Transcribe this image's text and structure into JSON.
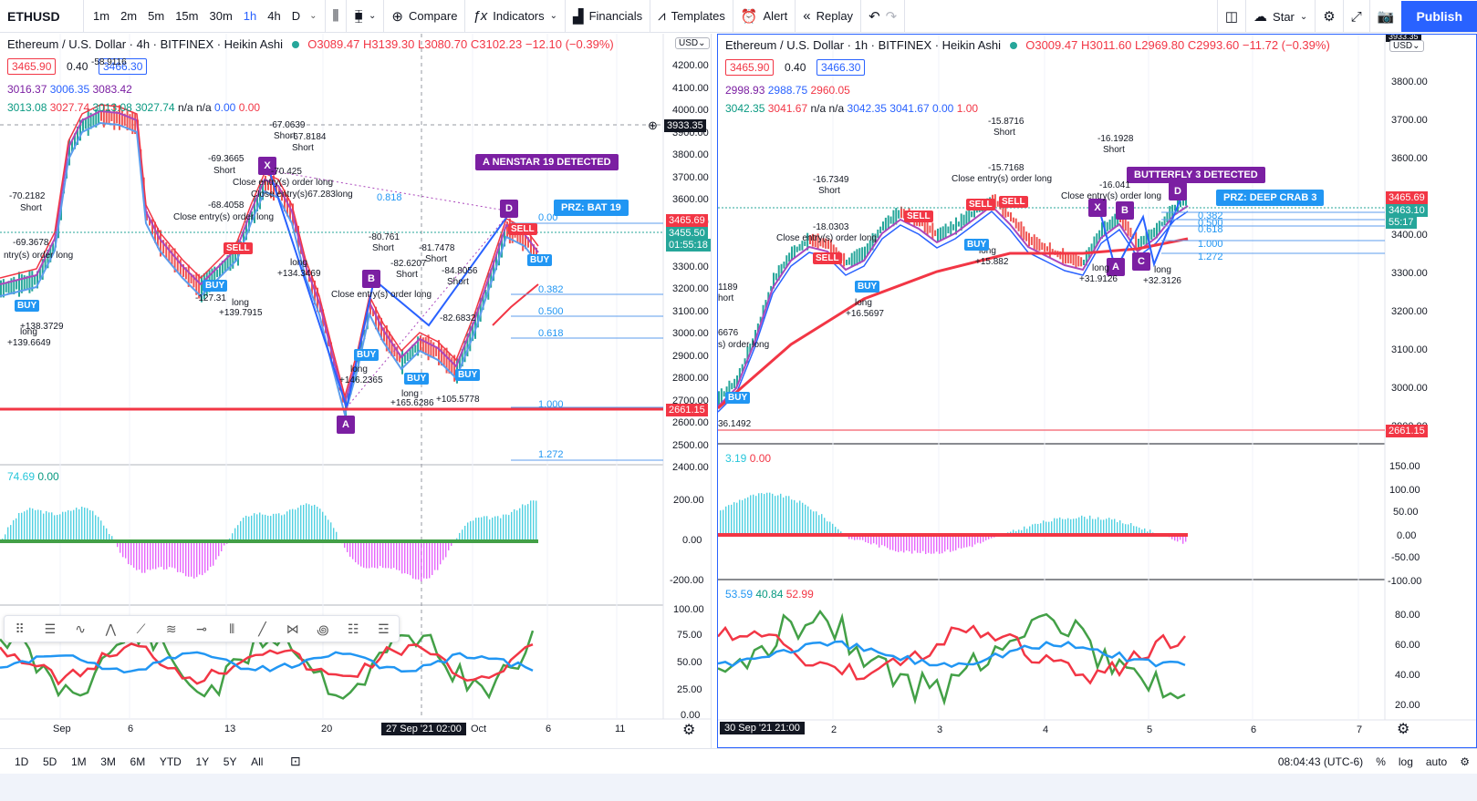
{
  "toolbar": {
    "symbol": "ETHUSD",
    "timeframes": [
      "1m",
      "2m",
      "5m",
      "15m",
      "30m",
      "1h",
      "4h",
      "D"
    ],
    "active_timeframe": "1h",
    "compare": "Compare",
    "indicators": "Indicators",
    "financials": "Financials",
    "templates": "Templates",
    "alert": "Alert",
    "replay": "Replay",
    "star": "Star",
    "publish": "Publish"
  },
  "left": {
    "title": "Ethereum / U.S. Dollar · 4h · BITFINEX · Heikin Ashi",
    "ohlc": {
      "o": "O3089.47",
      "h": "H3139.30",
      "l": "L3080.70",
      "c": "C3102.23",
      "chg": "−12.10 (−0.39%)"
    },
    "bid": "3465.90",
    "spread": "0.40",
    "ask": "3466.30",
    "ind1": [
      "3016.37",
      "3006.35",
      "3083.42"
    ],
    "ind2": [
      "3013.08",
      "3027.74",
      "3013.08",
      "3027.74",
      "n/a",
      "n/a",
      "0.00",
      "0.00"
    ],
    "currency": "USD",
    "price_ticks": [
      "4200.00",
      "4100.00",
      "4000.00",
      "3900.00",
      "3800.00",
      "3700.00",
      "3600.00",
      "3500.00",
      "3400.00",
      "3300.00",
      "3200.00",
      "3100.00",
      "3000.00",
      "2900.00",
      "2800.00",
      "2700.00",
      "2600.00",
      "2500.00",
      "2400.00"
    ],
    "crosshair_price": "3933.35",
    "last_price": "3465.69",
    "current_price": "3455.50",
    "countdown": "01:55:18",
    "support_price": "2661.15",
    "pattern_label": "A NENSTAR 19 DETECTED",
    "prz_label": "PRZ: BAT 19",
    "fib_levels": [
      "0.818",
      "0.00",
      "0.382",
      "0.500",
      "0.618",
      "1.000",
      "1.272"
    ],
    "osc1_values": [
      "74.69",
      "0.00"
    ],
    "osc1_ticks": [
      "200.00",
      "0.00",
      "-200.00"
    ],
    "osc2_ticks": [
      "100.00",
      "75.00",
      "50.00",
      "25.00",
      "0.00"
    ],
    "time_ticks": [
      "Sep",
      "6",
      "13",
      "20",
      "Oct",
      "6",
      "11"
    ],
    "time_highlight": "27 Sep '21   02:00",
    "annotations": [
      {
        "text": "-58.9116"
      },
      {
        "text": "-67.0639"
      },
      {
        "text": "Short"
      },
      {
        "text": "-67.8184"
      },
      {
        "text": "Short"
      },
      {
        "text": "-69.3665"
      },
      {
        "text": "Short"
      },
      {
        "text": "-70.425"
      },
      {
        "text": "Close entry(s) order long"
      },
      {
        "text": "Close entry(s)67.283long"
      },
      {
        "text": "-68.4058"
      },
      {
        "text": "Close entry(s) order long"
      },
      {
        "text": "-70.2182"
      },
      {
        "text": "Short"
      },
      {
        "text": "-69.3678"
      },
      {
        "text": "ntry(s) order long"
      },
      {
        "text": "+138.3729"
      },
      {
        "text": "long"
      },
      {
        "text": "+139.6649"
      },
      {
        "text": "long"
      },
      {
        "text": "+134.3469"
      },
      {
        "text": "-127.31"
      },
      {
        "text": "long"
      },
      {
        "text": "+139.7915"
      },
      {
        "text": "-80.761"
      },
      {
        "text": "Short"
      },
      {
        "text": "-82.6207"
      },
      {
        "text": "Short"
      },
      {
        "text": "-81.7478"
      },
      {
        "text": "Short"
      },
      {
        "text": "-84.8056"
      },
      {
        "text": "Short"
      },
      {
        "text": "Close entry(s) order long"
      },
      {
        "text": "+146.2365"
      },
      {
        "text": "long"
      },
      {
        "text": "+165.6286"
      },
      {
        "text": "long"
      },
      {
        "text": "+105.5778"
      },
      {
        "text": "-82.6832"
      }
    ]
  },
  "right": {
    "title": "Ethereum / U.S. Dollar · 1h · BITFINEX · Heikin Ashi",
    "ohlc": {
      "o": "O3009.47",
      "h": "H3011.60",
      "l": "L2969.80",
      "c": "C2993.60",
      "chg": "−11.72 (−0.39%)"
    },
    "bid": "3465.90",
    "spread": "0.40",
    "ask": "3466.30",
    "ind1": [
      "2998.93",
      "2988.75",
      "2960.05"
    ],
    "ind2": [
      "3042.35",
      "3041.67",
      "n/a",
      "n/a",
      "3042.35",
      "3041.67",
      "0.00",
      "1.00"
    ],
    "currency": "USD",
    "price_ticks": [
      "3800.00",
      "3700.00",
      "3600.00",
      "3500.00",
      "3400.00",
      "3300.00",
      "3200.00",
      "3100.00",
      "3000.00",
      "2900.00"
    ],
    "top_price": "3933.35",
    "last_price": "3465.69",
    "current_price": "3463.10",
    "countdown": "55:17",
    "support_price": "2661.15",
    "pattern_label": "BUTTERFLY 3 DETECTED",
    "prz_label": "PRZ: DEEP CRAB 3",
    "fib_levels": [
      "0.382",
      "0.500",
      "0.618",
      "1.000",
      "1.272"
    ],
    "osc1_values": [
      "3.19",
      "0.00"
    ],
    "osc1_ticks": [
      "150.00",
      "100.00",
      "50.00",
      "0.00",
      "-50.00",
      "-100.00"
    ],
    "osc2_values": [
      "53.59",
      "40.84",
      "52.99"
    ],
    "osc2_ticks": [
      "80.00",
      "60.00",
      "40.00",
      "20.00"
    ],
    "time_ticks": [
      "2",
      "3",
      "4",
      "5",
      "6",
      "7"
    ],
    "time_highlight": "30 Sep '21   21:00",
    "annotations": [
      {
        "text": "-15.8716"
      },
      {
        "text": "Short"
      },
      {
        "text": "-16.1928"
      },
      {
        "text": "Short"
      },
      {
        "text": "-15.7168"
      },
      {
        "text": "Close entry(s) order long"
      },
      {
        "text": "-16.041"
      },
      {
        "text": "Close entry(s) order long"
      },
      {
        "text": "-16.7349"
      },
      {
        "text": "Short"
      },
      {
        "text": "-18.0303"
      },
      {
        "text": "Close entry(s) order long"
      },
      {
        "text": "+15.882"
      },
      {
        "text": "long"
      },
      {
        "text": "+16.5697"
      },
      {
        "text": "long"
      },
      {
        "text": "+31.9126"
      },
      {
        "text": "long"
      },
      {
        "text": "+32.3126"
      },
      {
        "text": "long"
      },
      {
        "text": "36.1492"
      },
      {
        "text": "1189"
      },
      {
        "text": "hort"
      },
      {
        "text": "6676"
      },
      {
        "text": "s) order long"
      }
    ]
  },
  "bottom": {
    "ranges": [
      "1D",
      "5D",
      "1M",
      "3M",
      "6M",
      "YTD",
      "1Y",
      "5Y",
      "All"
    ],
    "clock": "08:04:43 (UTC-6)",
    "pct": "%",
    "log": "log",
    "auto": "auto"
  },
  "colors": {
    "accent": "#2962ff",
    "green": "#089981",
    "red": "#f23645",
    "purple": "#7b1fa2",
    "blue": "#2196f3"
  }
}
